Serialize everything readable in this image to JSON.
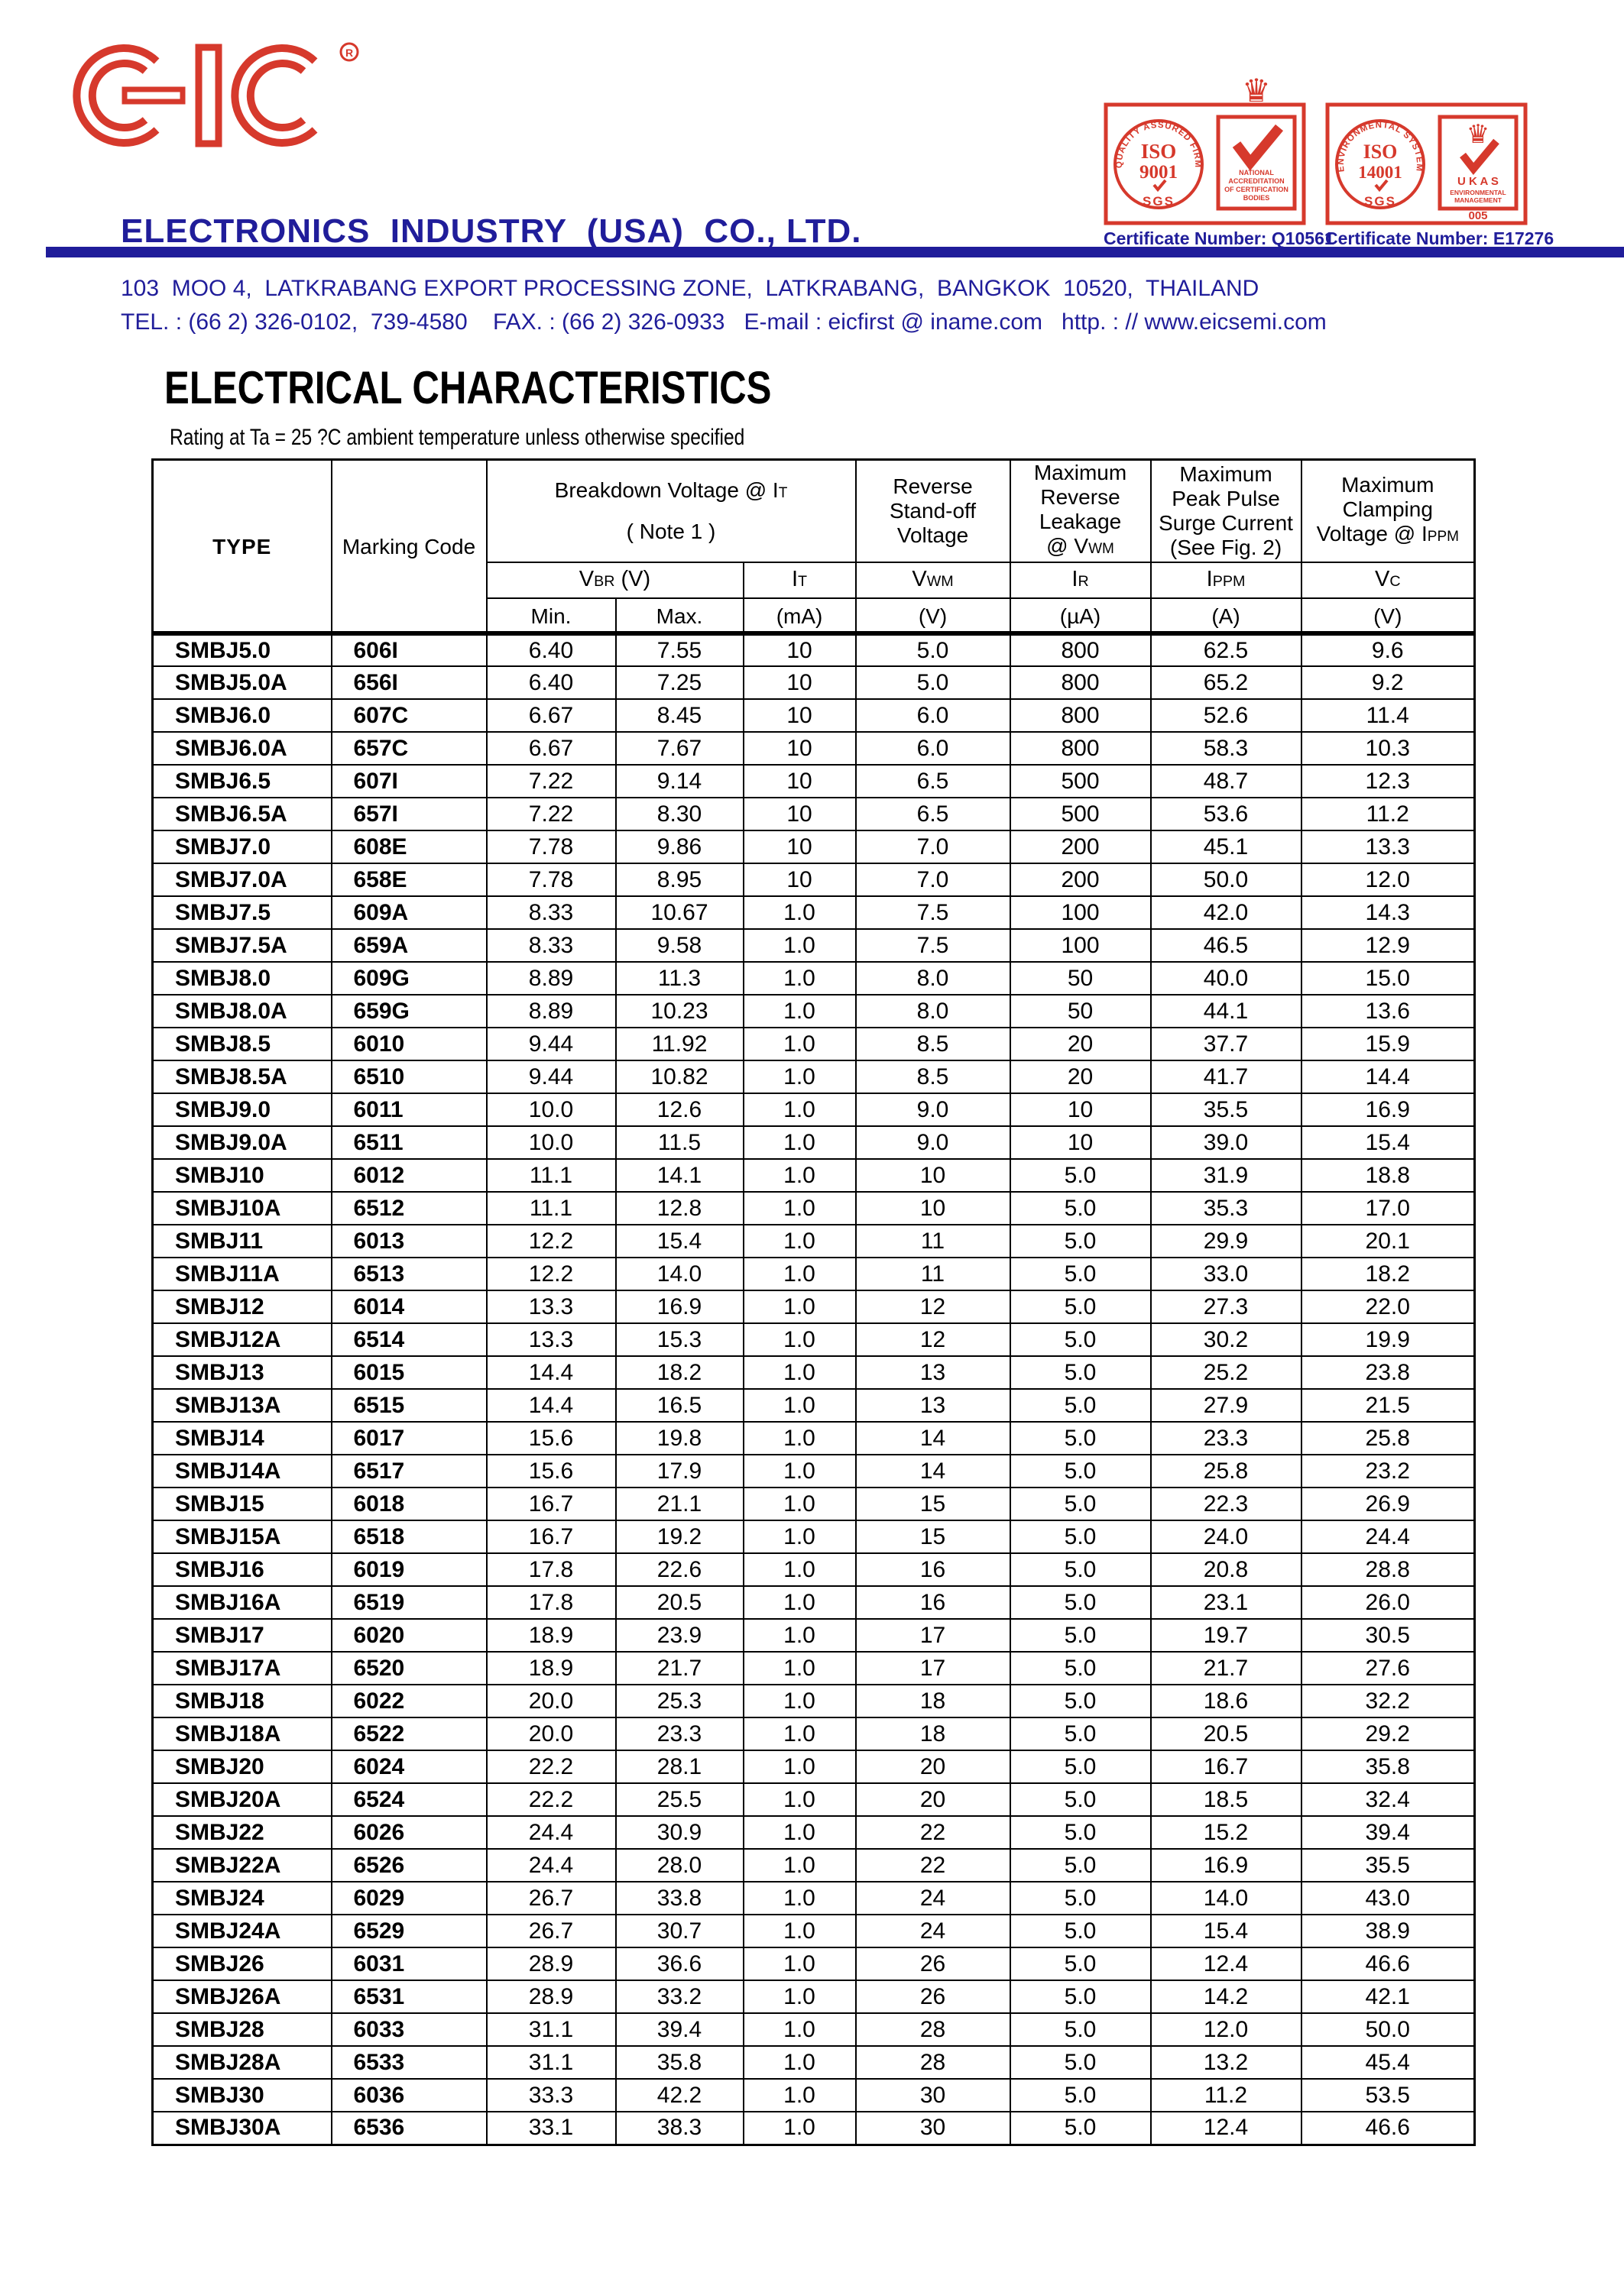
{
  "colors": {
    "red": "#d6392c",
    "navy": "#201d9a",
    "black": "#000000"
  },
  "logo": {
    "text": "EIC",
    "registered": "R"
  },
  "company": {
    "name": "ELECTRONICS  INDUSTRY  (USA)  CO., LTD."
  },
  "address": {
    "line1": "103  MOO 4,  LATKRABANG EXPORT PROCESSING ZONE,  LATKRABANG,  BANGKOK  10520,  THAILAND",
    "line2": "TEL. : (66 2) 326-0102,  739-4580    FAX. : (66 2) 326-0933   E-mail : eicfirst @ iname.com   http. : // www.eicsemi.com"
  },
  "certs": {
    "cert1": {
      "ring": "QUALITY ASSURED FIRM",
      "iso": "ISO",
      "num": "9001",
      "sgs": "SGS",
      "box_l1": "NATIONAL",
      "box_l2": "ACCREDITATION",
      "box_l3": "OF CERTIFICATION",
      "box_l4": "BODIES",
      "caption": "Certificate Number: Q10561"
    },
    "cert2": {
      "ring": "ENVIRONMENTAL SYSTEM",
      "iso": "ISO",
      "num": "14001",
      "sgs": "SGS",
      "ukas": "U K A S",
      "box_l1": "ENVIRONMENTAL",
      "box_l2": "MANAGEMENT",
      "code": "005",
      "caption": "Certificate Number: E17276"
    }
  },
  "section": {
    "title": "ELECTRICAL CHARACTERISTICS",
    "subtitle": "Rating at Ta = 25 ?C ambient temperature unless otherwise specified"
  },
  "table": {
    "head": {
      "type": "TYPE",
      "marking": "Marking Code",
      "breakdown_pre": "Breakdown Voltage @  I",
      "breakdown_sub": "T",
      "breakdown_note": "( Note 1 )",
      "standoff": "Reverse\nStand-off\nVoltage",
      "leakage_pre": "Maximum\nReverse\nLeakage\n@ V",
      "leakage_sub": "WM",
      "surge": "Maximum\nPeak Pulse\nSurge Current\n(See Fig. 2)",
      "clamp_pre": "Maximum\nClamping\nVoltage @ I",
      "clamp_sub": "PPM",
      "vbr_pre": "V",
      "vbr_sub": "BR",
      "vbr_post": "(V)",
      "it_pre": "I",
      "it_sub": "T",
      "vwm_pre": "V",
      "vwm_sub": "WM",
      "ir_pre": "I",
      "ir_sub": "R",
      "ippm_pre": "I",
      "ippm_sub": "PPM",
      "vc_pre": "V",
      "vc_sub": "C",
      "min": "Min.",
      "max": "Max.",
      "u_ma": "(mA)",
      "u_v1": "(V)",
      "u_ua": "(µA)",
      "u_a": "(A)",
      "u_v2": "(V)"
    },
    "rows": [
      [
        "SMBJ5.0",
        "606I",
        "6.40",
        "7.55",
        "10",
        "5.0",
        "800",
        "62.5",
        "9.6"
      ],
      [
        "SMBJ5.0A",
        "656I",
        "6.40",
        "7.25",
        "10",
        "5.0",
        "800",
        "65.2",
        "9.2"
      ],
      [
        "SMBJ6.0",
        "607C",
        "6.67",
        "8.45",
        "10",
        "6.0",
        "800",
        "52.6",
        "11.4"
      ],
      [
        "SMBJ6.0A",
        "657C",
        "6.67",
        "7.67",
        "10",
        "6.0",
        "800",
        "58.3",
        "10.3"
      ],
      [
        "SMBJ6.5",
        "607I",
        "7.22",
        "9.14",
        "10",
        "6.5",
        "500",
        "48.7",
        "12.3"
      ],
      [
        "SMBJ6.5A",
        "657I",
        "7.22",
        "8.30",
        "10",
        "6.5",
        "500",
        "53.6",
        "11.2"
      ],
      [
        "SMBJ7.0",
        "608E",
        "7.78",
        "9.86",
        "10",
        "7.0",
        "200",
        "45.1",
        "13.3"
      ],
      [
        "SMBJ7.0A",
        "658E",
        "7.78",
        "8.95",
        "10",
        "7.0",
        "200",
        "50.0",
        "12.0"
      ],
      [
        "SMBJ7.5",
        "609A",
        "8.33",
        "10.67",
        "1.0",
        "7.5",
        "100",
        "42.0",
        "14.3"
      ],
      [
        "SMBJ7.5A",
        "659A",
        "8.33",
        "9.58",
        "1.0",
        "7.5",
        "100",
        "46.5",
        "12.9"
      ],
      [
        "SMBJ8.0",
        "609G",
        "8.89",
        "11.3",
        "1.0",
        "8.0",
        "50",
        "40.0",
        "15.0"
      ],
      [
        "SMBJ8.0A",
        "659G",
        "8.89",
        "10.23",
        "1.0",
        "8.0",
        "50",
        "44.1",
        "13.6"
      ],
      [
        "SMBJ8.5",
        "6010",
        "9.44",
        "11.92",
        "1.0",
        "8.5",
        "20",
        "37.7",
        "15.9"
      ],
      [
        "SMBJ8.5A",
        "6510",
        "9.44",
        "10.82",
        "1.0",
        "8.5",
        "20",
        "41.7",
        "14.4"
      ],
      [
        "SMBJ9.0",
        "6011",
        "10.0",
        "12.6",
        "1.0",
        "9.0",
        "10",
        "35.5",
        "16.9"
      ],
      [
        "SMBJ9.0A",
        "6511",
        "10.0",
        "11.5",
        "1.0",
        "9.0",
        "10",
        "39.0",
        "15.4"
      ],
      [
        "SMBJ10",
        "6012",
        "11.1",
        "14.1",
        "1.0",
        "10",
        "5.0",
        "31.9",
        "18.8"
      ],
      [
        "SMBJ10A",
        "6512",
        "11.1",
        "12.8",
        "1.0",
        "10",
        "5.0",
        "35.3",
        "17.0"
      ],
      [
        "SMBJ11",
        "6013",
        "12.2",
        "15.4",
        "1.0",
        "11",
        "5.0",
        "29.9",
        "20.1"
      ],
      [
        "SMBJ11A",
        "6513",
        "12.2",
        "14.0",
        "1.0",
        "11",
        "5.0",
        "33.0",
        "18.2"
      ],
      [
        "SMBJ12",
        "6014",
        "13.3",
        "16.9",
        "1.0",
        "12",
        "5.0",
        "27.3",
        "22.0"
      ],
      [
        "SMBJ12A",
        "6514",
        "13.3",
        "15.3",
        "1.0",
        "12",
        "5.0",
        "30.2",
        "19.9"
      ],
      [
        "SMBJ13",
        "6015",
        "14.4",
        "18.2",
        "1.0",
        "13",
        "5.0",
        "25.2",
        "23.8"
      ],
      [
        "SMBJ13A",
        "6515",
        "14.4",
        "16.5",
        "1.0",
        "13",
        "5.0",
        "27.9",
        "21.5"
      ],
      [
        "SMBJ14",
        "6017",
        "15.6",
        "19.8",
        "1.0",
        "14",
        "5.0",
        "23.3",
        "25.8"
      ],
      [
        "SMBJ14A",
        "6517",
        "15.6",
        "17.9",
        "1.0",
        "14",
        "5.0",
        "25.8",
        "23.2"
      ],
      [
        "SMBJ15",
        "6018",
        "16.7",
        "21.1",
        "1.0",
        "15",
        "5.0",
        "22.3",
        "26.9"
      ],
      [
        "SMBJ15A",
        "6518",
        "16.7",
        "19.2",
        "1.0",
        "15",
        "5.0",
        "24.0",
        "24.4"
      ],
      [
        "SMBJ16",
        "6019",
        "17.8",
        "22.6",
        "1.0",
        "16",
        "5.0",
        "20.8",
        "28.8"
      ],
      [
        "SMBJ16A",
        "6519",
        "17.8",
        "20.5",
        "1.0",
        "16",
        "5.0",
        "23.1",
        "26.0"
      ],
      [
        "SMBJ17",
        "6020",
        "18.9",
        "23.9",
        "1.0",
        "17",
        "5.0",
        "19.7",
        "30.5"
      ],
      [
        "SMBJ17A",
        "6520",
        "18.9",
        "21.7",
        "1.0",
        "17",
        "5.0",
        "21.7",
        "27.6"
      ],
      [
        "SMBJ18",
        "6022",
        "20.0",
        "25.3",
        "1.0",
        "18",
        "5.0",
        "18.6",
        "32.2"
      ],
      [
        "SMBJ18A",
        "6522",
        "20.0",
        "23.3",
        "1.0",
        "18",
        "5.0",
        "20.5",
        "29.2"
      ],
      [
        "SMBJ20",
        "6024",
        "22.2",
        "28.1",
        "1.0",
        "20",
        "5.0",
        "16.7",
        "35.8"
      ],
      [
        "SMBJ20A",
        "6524",
        "22.2",
        "25.5",
        "1.0",
        "20",
        "5.0",
        "18.5",
        "32.4"
      ],
      [
        "SMBJ22",
        "6026",
        "24.4",
        "30.9",
        "1.0",
        "22",
        "5.0",
        "15.2",
        "39.4"
      ],
      [
        "SMBJ22A",
        "6526",
        "24.4",
        "28.0",
        "1.0",
        "22",
        "5.0",
        "16.9",
        "35.5"
      ],
      [
        "SMBJ24",
        "6029",
        "26.7",
        "33.8",
        "1.0",
        "24",
        "5.0",
        "14.0",
        "43.0"
      ],
      [
        "SMBJ24A",
        "6529",
        "26.7",
        "30.7",
        "1.0",
        "24",
        "5.0",
        "15.4",
        "38.9"
      ],
      [
        "SMBJ26",
        "6031",
        "28.9",
        "36.6",
        "1.0",
        "26",
        "5.0",
        "12.4",
        "46.6"
      ],
      [
        "SMBJ26A",
        "6531",
        "28.9",
        "33.2",
        "1.0",
        "26",
        "5.0",
        "14.2",
        "42.1"
      ],
      [
        "SMBJ28",
        "6033",
        "31.1",
        "39.4",
        "1.0",
        "28",
        "5.0",
        "12.0",
        "50.0"
      ],
      [
        "SMBJ28A",
        "6533",
        "31.1",
        "35.8",
        "1.0",
        "28",
        "5.0",
        "13.2",
        "45.4"
      ],
      [
        "SMBJ30",
        "6036",
        "33.3",
        "42.2",
        "1.0",
        "30",
        "5.0",
        "11.2",
        "53.5"
      ],
      [
        "SMBJ30A",
        "6536",
        "33.1",
        "38.3",
        "1.0",
        "30",
        "5.0",
        "12.4",
        "46.6"
      ]
    ]
  }
}
